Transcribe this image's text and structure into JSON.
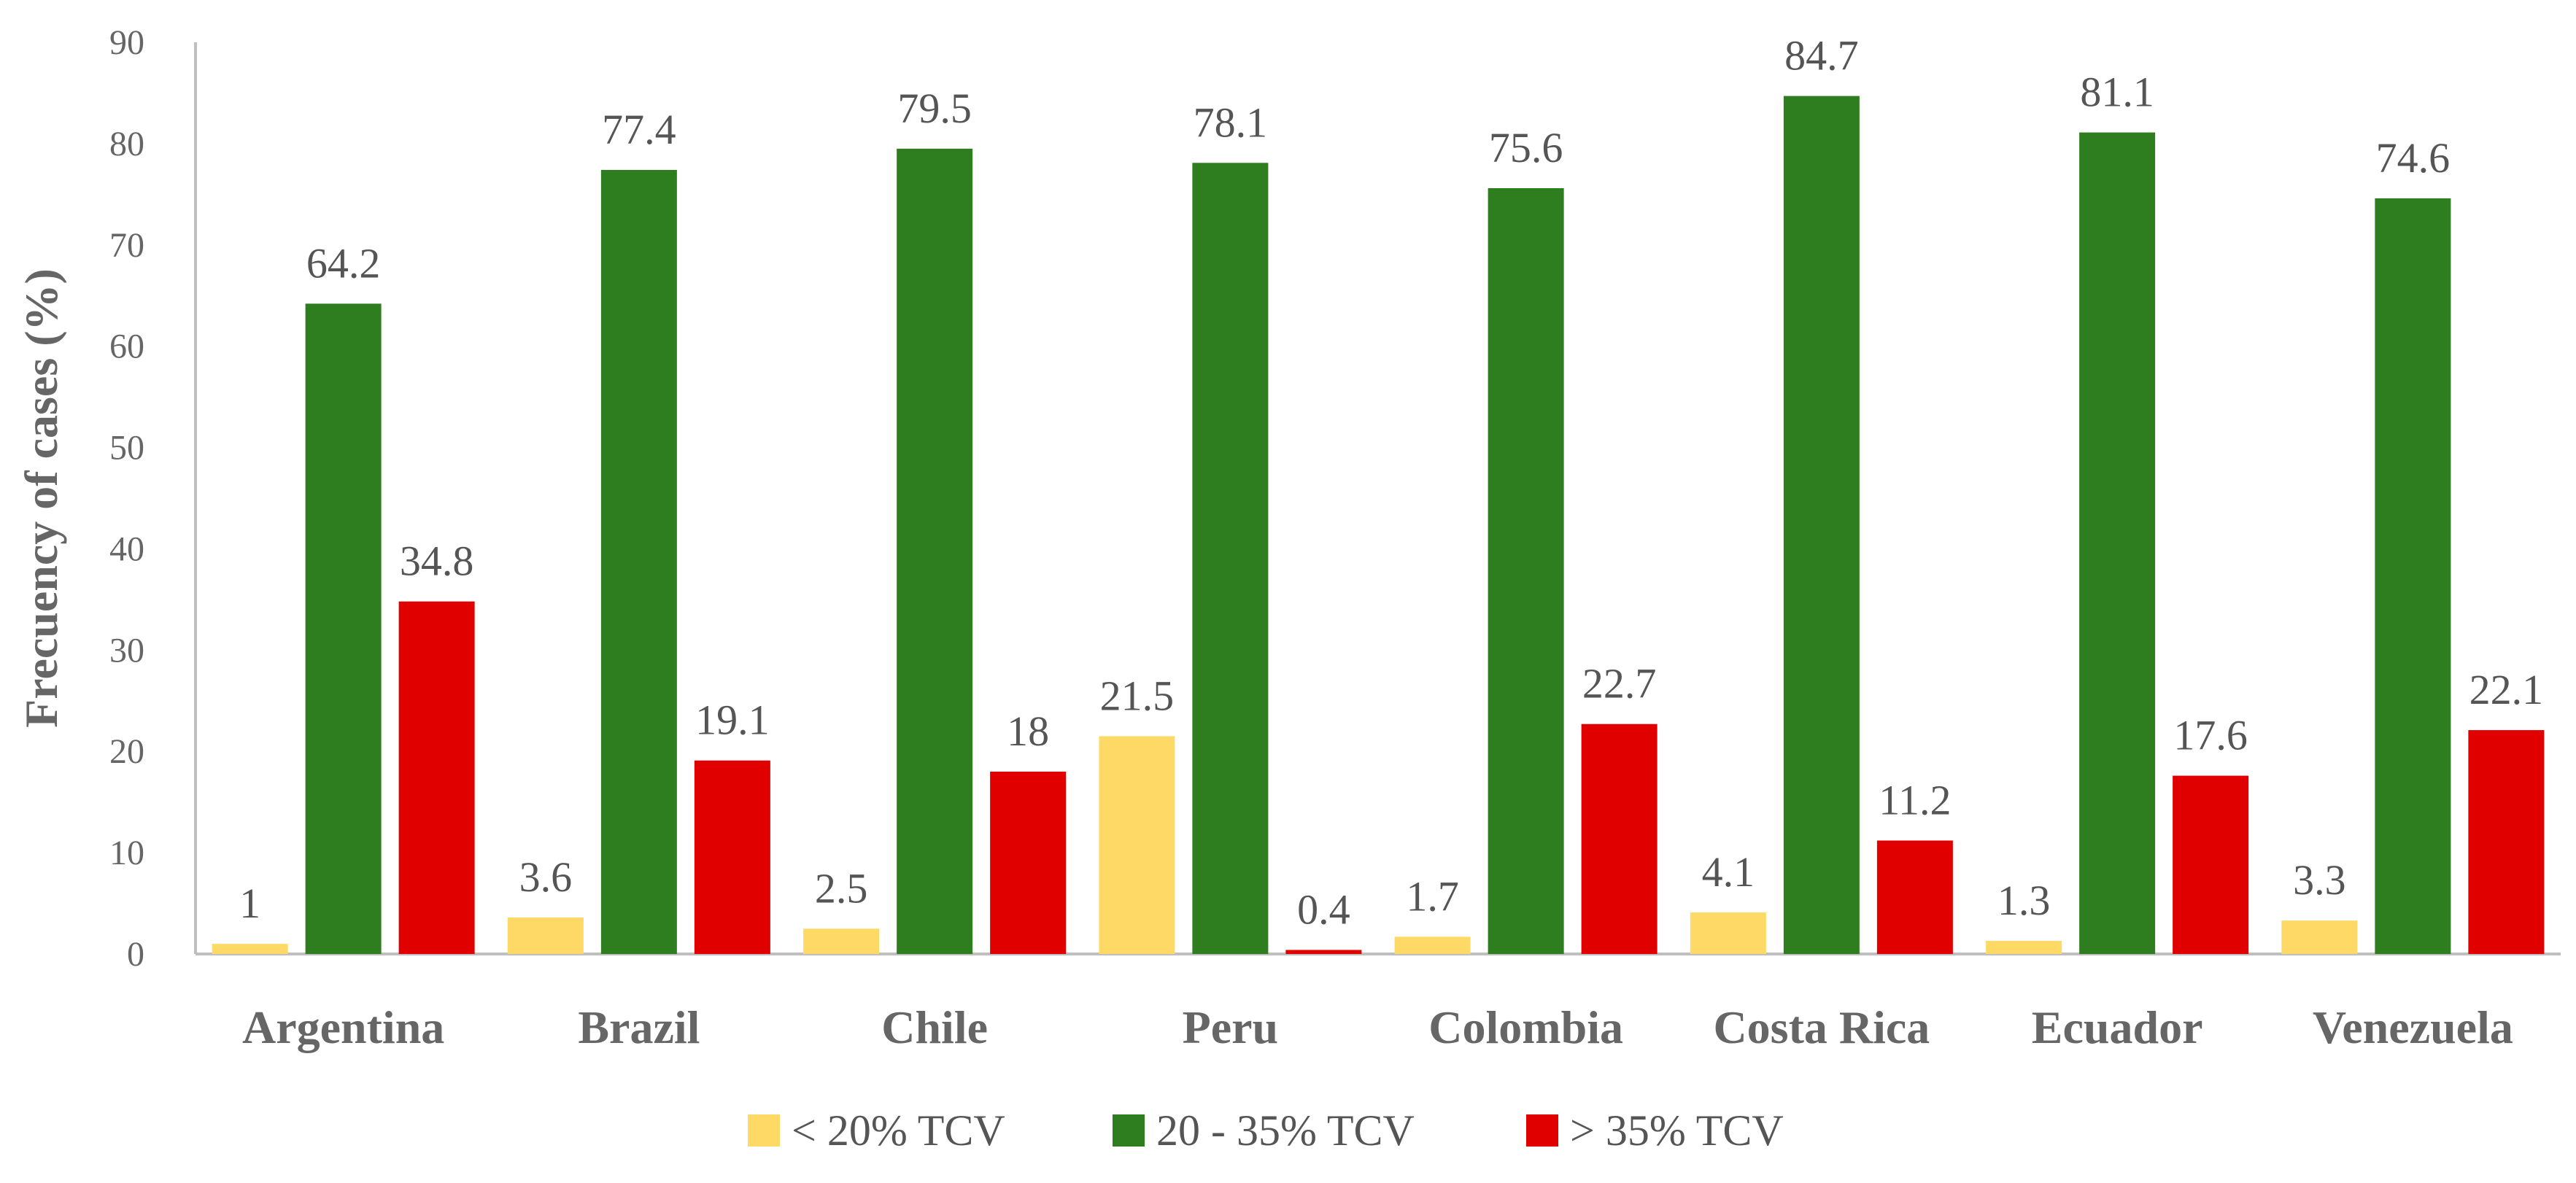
{
  "chart_data": {
    "type": "bar",
    "title": "",
    "xlabel": "",
    "ylabel": "Frecuency of cases (%)",
    "ylim": [
      0,
      90
    ],
    "yticks": [
      0,
      10,
      20,
      30,
      40,
      50,
      60,
      70,
      80,
      90
    ],
    "grid": false,
    "legend_position": "bottom",
    "categories": [
      "Argentina",
      "Brazil",
      "Chile",
      "Peru",
      "Colombia",
      "Costa Rica",
      "Ecuador",
      "Venezuela"
    ],
    "series": [
      {
        "name": "< 20% TCV",
        "color": "#FFD966",
        "values": [
          1,
          3.6,
          2.5,
          21.5,
          1.7,
          4.1,
          1.3,
          3.3
        ]
      },
      {
        "name": "20 - 35% TCV",
        "color": "#2E7D1F",
        "values": [
          64.2,
          77.4,
          79.5,
          78.1,
          75.6,
          84.7,
          81.1,
          74.6
        ]
      },
      {
        "name": "> 35% TCV",
        "color": "#E00000",
        "values": [
          34.8,
          19.1,
          18,
          0.4,
          22.7,
          11.2,
          17.6,
          22.1
        ]
      }
    ]
  }
}
